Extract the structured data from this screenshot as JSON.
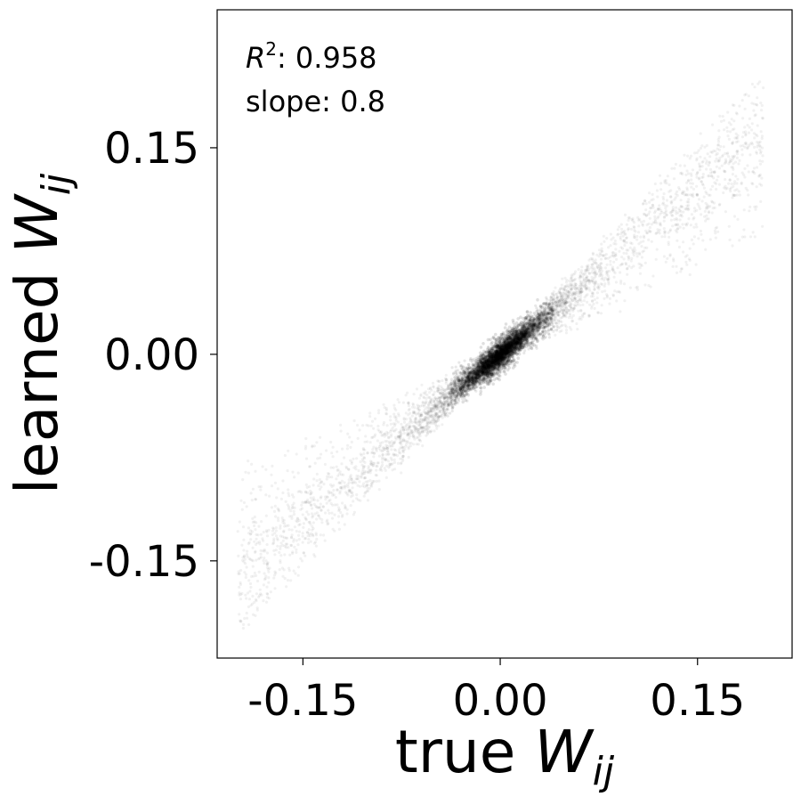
{
  "chart_data": {
    "type": "scatter",
    "title": "",
    "xlabel": "true W_ij",
    "ylabel": "learned W_ij",
    "xlabel_parts": {
      "text": "true ",
      "var": "W",
      "sub": "ij"
    },
    "ylabel_parts": {
      "text": "learned ",
      "var": "W",
      "sub": "ij"
    },
    "xlim": [
      -0.2152,
      0.2219
    ],
    "ylim": [
      -0.2206,
      0.2502
    ],
    "xticks": [
      -0.15,
      0.0,
      0.15
    ],
    "xtick_labels": [
      "-0.15",
      "0.00",
      "0.15"
    ],
    "yticks": [
      -0.15,
      0.0,
      0.15
    ],
    "ytick_labels": [
      "-0.15",
      "0.00",
      "0.15"
    ],
    "grid": false,
    "point_color": "#000000",
    "point_alpha": 0.03,
    "annotations": {
      "r2_prefix": "R",
      "r2_sup": "2",
      "r2_value": ": 0.958",
      "slope": "slope: 0.8"
    },
    "x_range": [
      -0.2,
      0.2
    ],
    "series": [
      {
        "slope": 1.0,
        "density": 0.35
      },
      {
        "slope": 0.95,
        "density": 0.3
      },
      {
        "slope": 0.9,
        "density": 0.5
      },
      {
        "slope": 0.85,
        "density": 0.5
      },
      {
        "slope": 0.8,
        "density": 0.6
      },
      {
        "slope": 0.75,
        "density": 0.55
      },
      {
        "slope": 0.7,
        "density": 0.45
      },
      {
        "slope": 0.65,
        "density": 0.4
      },
      {
        "slope": 0.55,
        "density": 0.3
      },
      {
        "slope": 0.45,
        "density": 0.25
      }
    ]
  }
}
